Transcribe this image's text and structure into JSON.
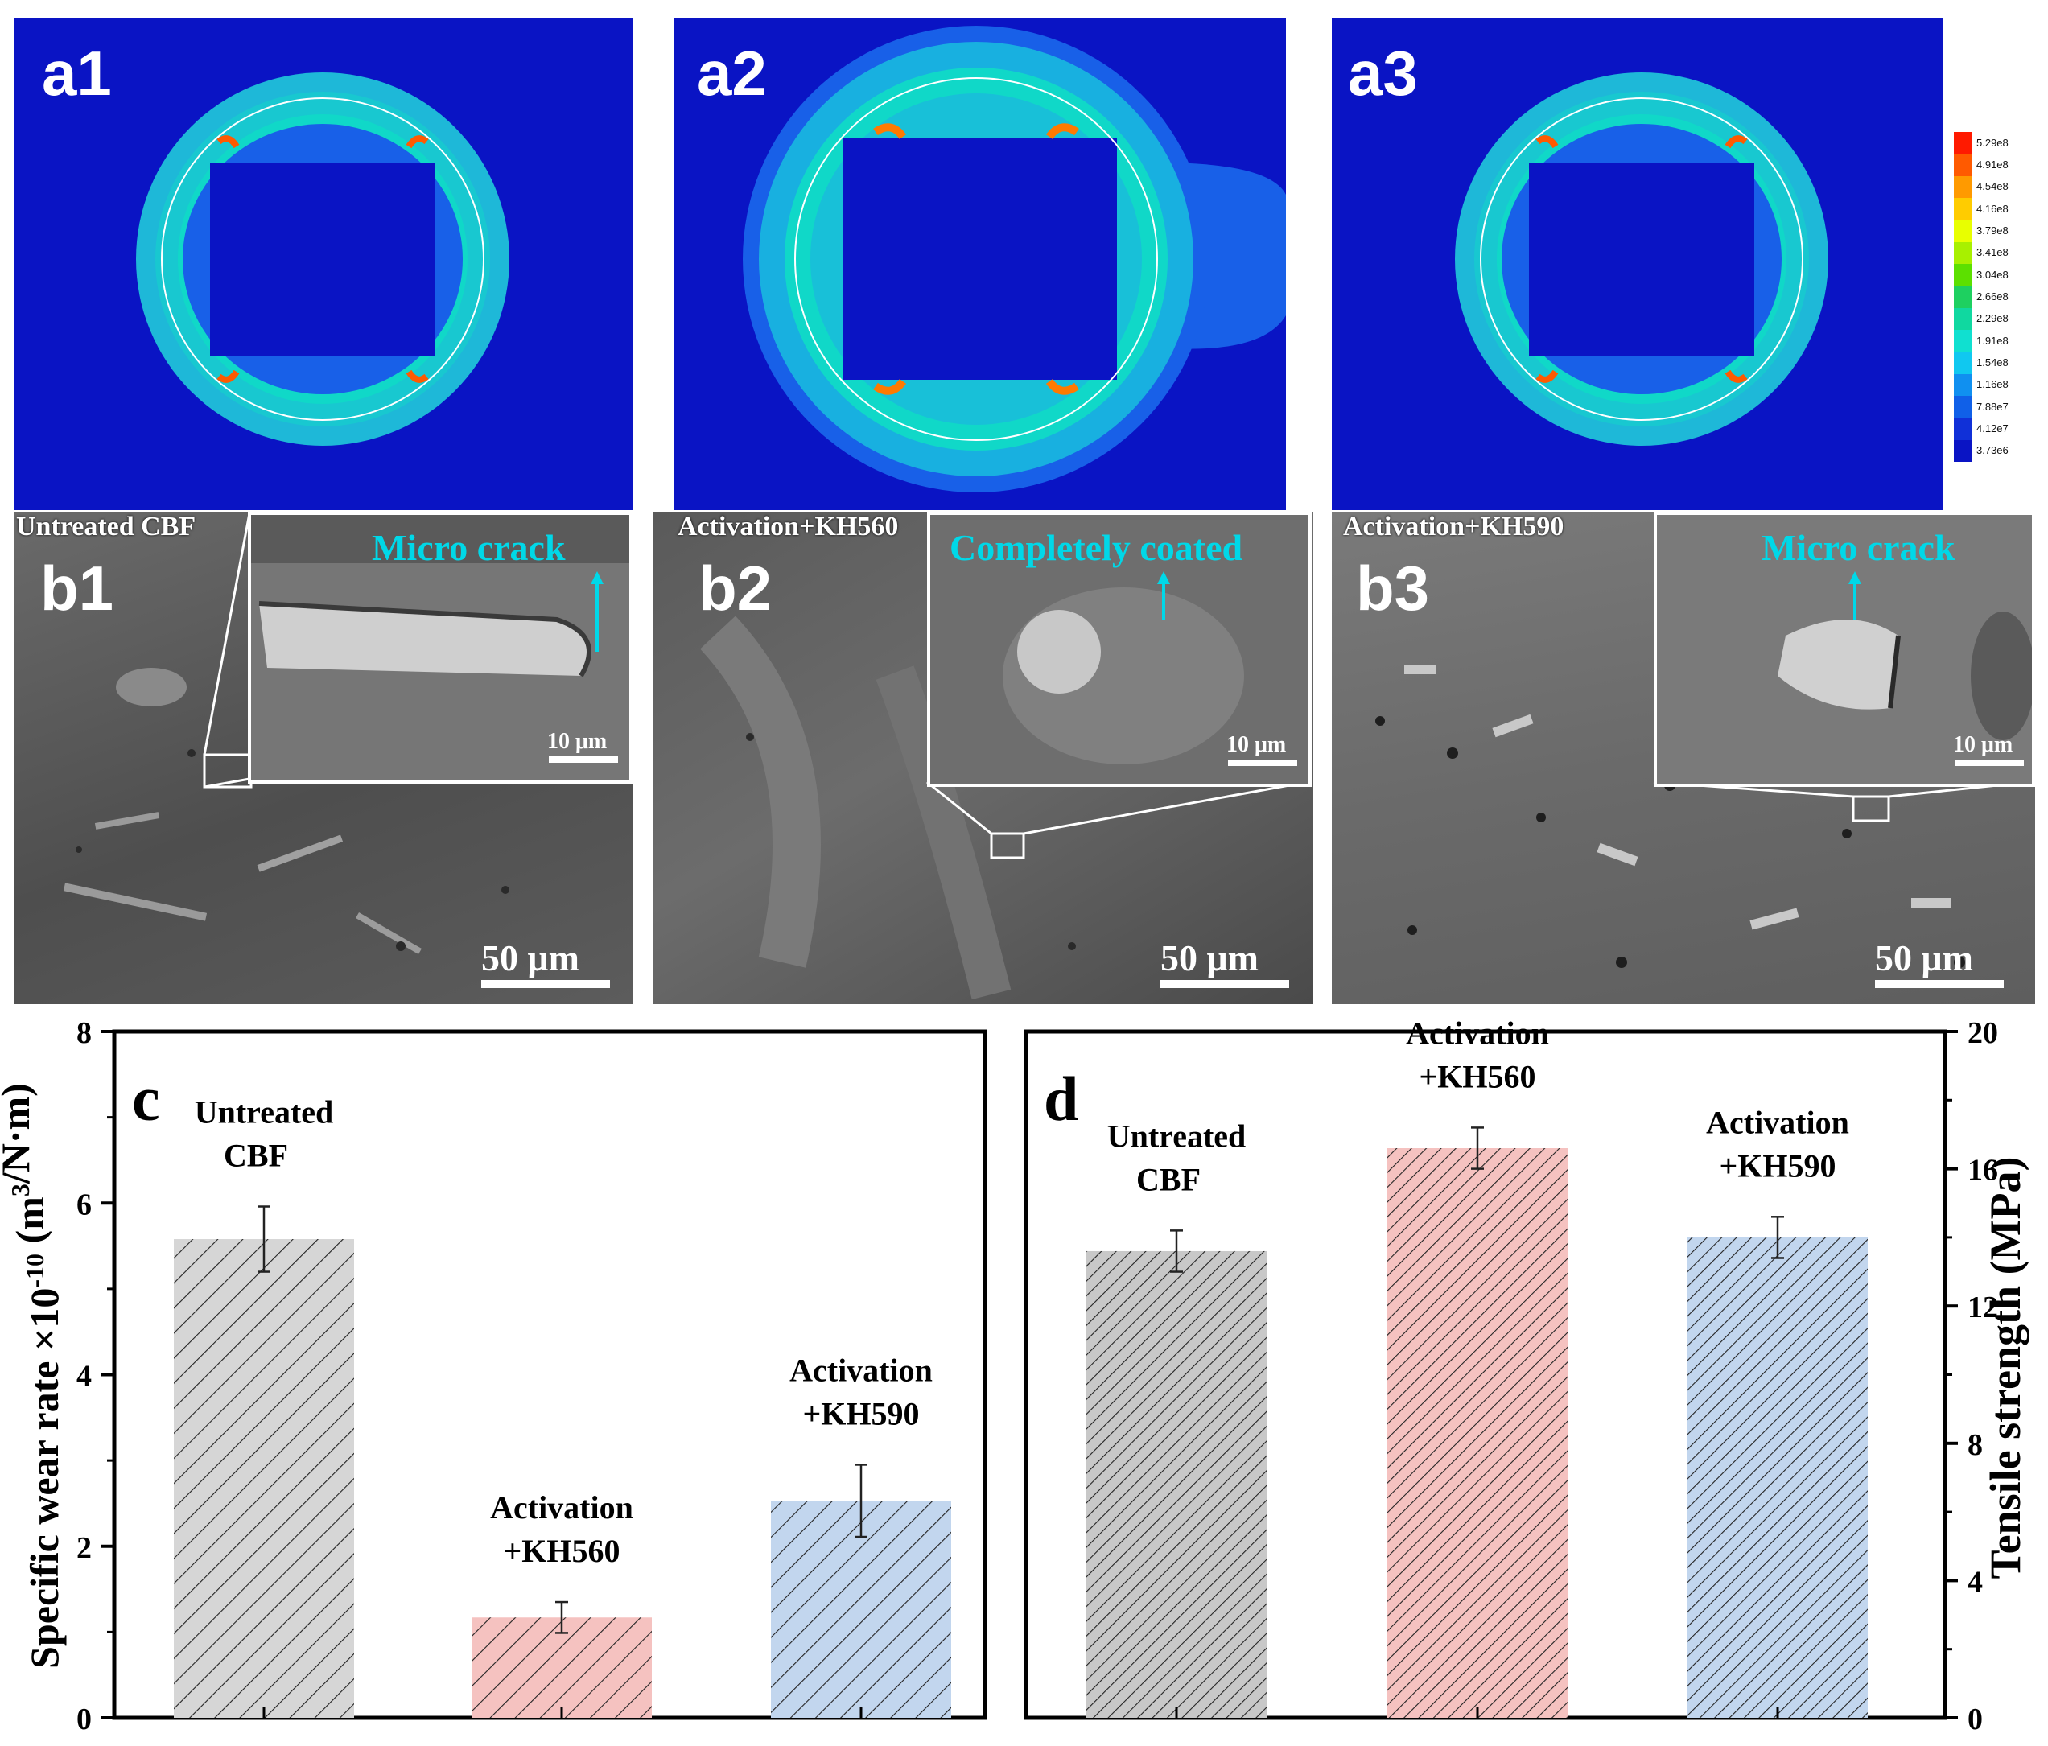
{
  "panels": {
    "a1": {
      "label": "a1"
    },
    "a2": {
      "label": "a2"
    },
    "a3": {
      "label": "a3"
    },
    "b1": {
      "label": "b1",
      "caption": "Untreated CBF",
      "annotation": "Micro crack",
      "inset_scale": "10 μm",
      "scale": "50 μm"
    },
    "b2": {
      "label": "b2",
      "caption": "Activation+KH560",
      "annotation": "Completely coated",
      "inset_scale": "10 μm",
      "scale": "50 μm"
    },
    "b3": {
      "label": "b3",
      "caption": "Activation+KH590",
      "annotation": "Micro crack",
      "inset_scale": "10 μm",
      "scale": "50 μm"
    }
  },
  "colorbar": {
    "labels": [
      "5.29e8",
      "4.91e8",
      "4.54e8",
      "4.16e8",
      "3.79e8",
      "3.41e8",
      "3.04e8",
      "2.66e8",
      "2.29e8",
      "1.91e8",
      "1.54e8",
      "1.16e8",
      "7.88e7",
      "4.12e7",
      "3.73e6"
    ],
    "colors": [
      "#ff1a00",
      "#ff5a00",
      "#ff9a00",
      "#ffcc00",
      "#e8ff00",
      "#a8f000",
      "#5ce000",
      "#1ed060",
      "#10d8a0",
      "#10e0d0",
      "#10c8f0",
      "#1090f0",
      "#1060e8",
      "#1030d8",
      "#0a14c4"
    ]
  },
  "chart_data": [
    {
      "panel": "c",
      "type": "bar",
      "categories": [
        "Untreated CBF",
        "Activation +KH560",
        "Activation +KH590"
      ],
      "category_lines": [
        [
          "Untreated",
          "CBF"
        ],
        [
          "Activation",
          "+KH560"
        ],
        [
          "Activation",
          "+KH590"
        ]
      ],
      "values": [
        5.58,
        1.17,
        2.53
      ],
      "errors": [
        0.38,
        0.18,
        0.42
      ],
      "colors": [
        "#d6d6d6",
        "#f5c2c0",
        "#c2d6ee"
      ],
      "ylabel": "Specific wear rate ×10^-10 (m^3/N·m)",
      "ylim": [
        0,
        8
      ],
      "yticks": [
        0,
        2,
        4,
        6,
        8
      ],
      "axis_side": "left"
    },
    {
      "panel": "d",
      "type": "bar",
      "categories": [
        "Untreated CBF",
        "Activation +KH560",
        "Activation +KH590"
      ],
      "category_lines": [
        [
          "Untreated",
          "CBF"
        ],
        [
          "Activation",
          "+KH560"
        ],
        [
          "Activation",
          "+KH590"
        ]
      ],
      "values": [
        13.6,
        16.6,
        14.0
      ],
      "errors": [
        0.6,
        0.6,
        0.6
      ],
      "colors": [
        "#c8c8c8",
        "#f5c2c0",
        "#c2d6ee"
      ],
      "ylabel": "Tensile strength (MPa)",
      "ylim": [
        0,
        20
      ],
      "yticks": [
        0,
        4,
        8,
        12,
        16,
        20
      ],
      "axis_side": "right"
    }
  ]
}
